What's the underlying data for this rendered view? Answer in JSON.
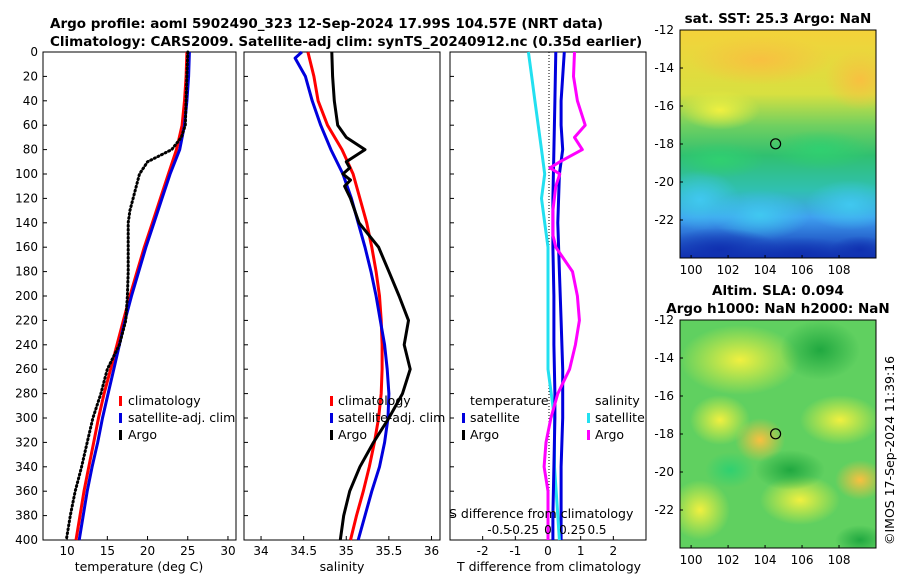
{
  "header": {
    "title_line1": "Argo profile: aoml 5902490_323 12-Sep-2024 17.99S 104.57E (NRT data)",
    "title_line2": "Climatology: CARS2009. Satellite-adj clim: synTS_20240912.nc (0.35d earlier)"
  },
  "footer": {
    "timestamp": "©IMOS 17-Sep-2024 11:39:16"
  },
  "colors": {
    "climatology": "#ff0000",
    "satellite": "#0000dd",
    "argo": "#000000",
    "temp_diff": "#22e0f0",
    "sal_diff": "#ff00ff",
    "sal_diff_sat": "#0000dd"
  },
  "chart_data": [
    {
      "id": "temperature",
      "type": "line",
      "xlabel": "temperature (deg C)",
      "ylabel": "",
      "xlim": [
        7,
        31
      ],
      "ylim": [
        400,
        0
      ],
      "xticks": [
        "10",
        "15",
        "20",
        "25",
        "30"
      ],
      "yticks": [
        "0",
        "20",
        "40",
        "60",
        "80",
        "100",
        "120",
        "140",
        "160",
        "180",
        "200",
        "220",
        "240",
        "260",
        "280",
        "300",
        "320",
        "340",
        "360",
        "380",
        "400"
      ],
      "legend": [
        "climatology",
        "satellite-adj. clim",
        "Argo"
      ],
      "legend_position": "lower-right",
      "series": [
        {
          "name": "climatology",
          "color": "#ff0000",
          "depth": [
            0,
            20,
            40,
            60,
            80,
            100,
            120,
            140,
            160,
            180,
            200,
            220,
            240,
            260,
            280,
            300,
            320,
            340,
            360,
            380,
            400
          ],
          "values": [
            24.9,
            24.8,
            24.6,
            24.3,
            23.6,
            22.6,
            21.6,
            20.6,
            19.6,
            18.7,
            17.8,
            17.0,
            16.2,
            15.4,
            14.6,
            13.9,
            13.3,
            12.7,
            12.1,
            11.6,
            11.1
          ]
        },
        {
          "name": "satellite-adj. clim",
          "color": "#0000dd",
          "depth": [
            0,
            20,
            40,
            60,
            80,
            100,
            120,
            140,
            160,
            180,
            200,
            220,
            240,
            260,
            280,
            300,
            320,
            340,
            360,
            380,
            400
          ],
          "values": [
            25.2,
            25.1,
            24.9,
            24.6,
            24.0,
            22.8,
            21.8,
            20.8,
            19.8,
            18.9,
            18.0,
            17.2,
            16.5,
            15.8,
            15.1,
            14.4,
            13.8,
            13.1,
            12.5,
            12.0,
            11.5
          ]
        },
        {
          "name": "Argo",
          "color": "#000000",
          "dotted": true,
          "depth": [
            0,
            20,
            40,
            60,
            70,
            80,
            90,
            100,
            110,
            120,
            130,
            140,
            160,
            180,
            200,
            220,
            240,
            260,
            280,
            300,
            320,
            340,
            360,
            380,
            400
          ],
          "values": [
            25.0,
            24.9,
            24.8,
            24.7,
            24.2,
            23.0,
            20.0,
            19.0,
            18.6,
            18.2,
            17.8,
            17.6,
            17.6,
            17.6,
            17.5,
            17.3,
            16.5,
            15.0,
            14.2,
            13.2,
            12.5,
            11.8,
            11.0,
            10.4,
            9.9
          ]
        }
      ]
    },
    {
      "id": "salinity",
      "type": "line",
      "xlabel": "salinity",
      "ylabel": "",
      "xlim": [
        33.8,
        36.1
      ],
      "ylim": [
        400,
        0
      ],
      "xticks": [
        "34",
        "34.5",
        "35",
        "35.5",
        "36"
      ],
      "legend": [
        "climatology",
        "satellite-adj. clim",
        "Argo"
      ],
      "legend_position": "lower-right",
      "series": [
        {
          "name": "climatology",
          "color": "#ff0000",
          "depth": [
            0,
            20,
            40,
            60,
            80,
            100,
            120,
            140,
            160,
            180,
            200,
            220,
            240,
            260,
            280,
            300,
            320,
            340,
            360,
            380,
            400
          ],
          "values": [
            34.55,
            34.62,
            34.67,
            34.78,
            34.95,
            35.08,
            35.16,
            35.24,
            35.3,
            35.35,
            35.39,
            35.41,
            35.42,
            35.42,
            35.41,
            35.38,
            35.33,
            35.27,
            35.2,
            35.12,
            35.05
          ]
        },
        {
          "name": "satellite-adj. clim",
          "color": "#0000dd",
          "depth": [
            0,
            5,
            20,
            40,
            60,
            80,
            100,
            120,
            140,
            160,
            180,
            200,
            220,
            240,
            260,
            280,
            300,
            320,
            340,
            360,
            380,
            400
          ],
          "values": [
            34.48,
            34.4,
            34.52,
            34.6,
            34.7,
            34.82,
            34.96,
            35.06,
            35.14,
            35.22,
            35.29,
            35.35,
            35.4,
            35.45,
            35.48,
            35.5,
            35.49,
            35.45,
            35.39,
            35.3,
            35.22,
            35.14
          ]
        },
        {
          "name": "Argo",
          "color": "#000000",
          "depth": [
            0,
            20,
            40,
            60,
            70,
            80,
            90,
            95,
            100,
            105,
            110,
            120,
            140,
            160,
            180,
            200,
            220,
            240,
            260,
            280,
            300,
            320,
            340,
            360,
            380,
            400
          ],
          "values": [
            34.83,
            34.84,
            34.86,
            34.9,
            35.0,
            35.22,
            35.0,
            35.04,
            34.96,
            35.05,
            34.98,
            35.05,
            35.15,
            35.38,
            35.5,
            35.62,
            35.73,
            35.68,
            35.75,
            35.66,
            35.5,
            35.32,
            35.16,
            35.04,
            34.97,
            34.93
          ]
        }
      ]
    },
    {
      "id": "difference",
      "type": "line",
      "xlabel": "T difference from climatology",
      "xlabel_top": "S difference from climatology",
      "xlim": [
        -3,
        3
      ],
      "ylim": [
        400,
        0
      ],
      "xticks": [
        "-2",
        "-1",
        "0",
        "1",
        "2"
      ],
      "xticks_top": [
        "-0.5",
        "-0.25",
        "0",
        "0.25",
        "0.5"
      ],
      "legend_temperature": {
        "heading": "temperature",
        "items": [
          "satellite",
          "Argo"
        ]
      },
      "legend_salinity": {
        "heading": "salinity",
        "items": [
          "satellite",
          "Argo"
        ]
      },
      "series": [
        {
          "name": "temperature satellite",
          "color": "#0000dd",
          "depth": [
            0,
            20,
            40,
            60,
            80,
            100,
            140,
            180,
            220,
            260,
            300,
            340,
            380,
            400
          ],
          "values": [
            0.5,
            0.45,
            0.4,
            0.4,
            0.45,
            0.35,
            0.3,
            0.35,
            0.4,
            0.45,
            0.45,
            0.4,
            0.4,
            0.4
          ]
        },
        {
          "name": "temperature Argo",
          "color": "#22e0f0",
          "depth": [
            0,
            20,
            40,
            60,
            80,
            100,
            120,
            140,
            160,
            180,
            200,
            220,
            260,
            300,
            340,
            380,
            400
          ],
          "values": [
            -0.6,
            -0.5,
            -0.4,
            -0.3,
            -0.2,
            -0.1,
            -0.2,
            -0.1,
            0.0,
            0.0,
            0.0,
            0.0,
            0.0,
            0.2,
            0.2,
            0.3,
            0.35
          ]
        },
        {
          "name": "salinity satellite",
          "color": "#0000dd",
          "axis": "top",
          "depth": [
            0,
            40,
            80,
            120,
            160,
            200,
            240,
            280,
            300,
            340,
            380,
            400
          ],
          "values": [
            0.08,
            0.07,
            0.06,
            0.05,
            0.05,
            0.06,
            0.06,
            0.07,
            0.07,
            0.06,
            0.05,
            0.05
          ]
        },
        {
          "name": "salinity Argo",
          "color": "#ff00ff",
          "axis": "top",
          "depth": [
            0,
            20,
            40,
            60,
            70,
            80,
            90,
            95,
            100,
            110,
            130,
            150,
            160,
            180,
            200,
            220,
            240,
            260,
            280,
            300,
            320,
            340,
            360,
            380,
            400
          ],
          "values": [
            0.27,
            0.26,
            0.3,
            0.38,
            0.27,
            0.35,
            0.12,
            0.02,
            0.12,
            0.08,
            0.05,
            0.05,
            0.08,
            0.25,
            0.3,
            0.32,
            0.28,
            0.22,
            0.1,
            0.03,
            -0.02,
            -0.04,
            0.0,
            0.0,
            0.0
          ]
        }
      ]
    },
    {
      "id": "sst_map",
      "type": "heatmap",
      "title": "sat. SST: 25.3 Argo: NaN",
      "xlim": [
        99.4,
        110
      ],
      "ylim": [
        -24,
        -12
      ],
      "xticks": [
        "100",
        "102",
        "104",
        "106",
        "108"
      ],
      "yticks": [
        "-12",
        "-14",
        "-16",
        "-18",
        "-20",
        "-22"
      ],
      "marker": {
        "lon": 104.57,
        "lat": -17.99
      }
    },
    {
      "id": "sla_map",
      "type": "heatmap",
      "title_line1": "Altim. SLA: 0.094",
      "title_line2": "Argo h1000: NaN h2000: NaN",
      "xlim": [
        99.4,
        110
      ],
      "ylim": [
        -24,
        -12
      ],
      "xticks": [
        "100",
        "102",
        "104",
        "106",
        "108"
      ],
      "yticks": [
        "-12",
        "-14",
        "-16",
        "-18",
        "-20",
        "-22"
      ],
      "marker": {
        "lon": 104.57,
        "lat": -17.99
      }
    }
  ]
}
